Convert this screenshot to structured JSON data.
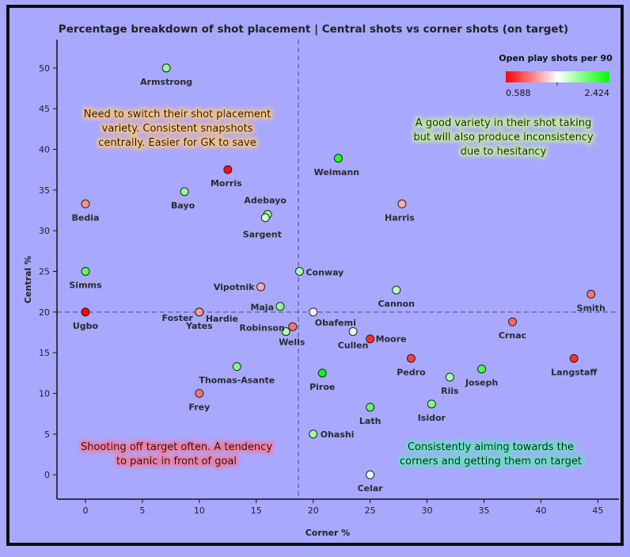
{
  "chart_data": {
    "type": "scatter",
    "title": "Percentage breakdown of shot placement | Central shots vs corner shots (on target)",
    "xlabel": "Corner %",
    "ylabel": "Central %",
    "xlim": [
      -2.5,
      46.5
    ],
    "ylim": [
      -3,
      53
    ],
    "xticks": [
      0,
      5,
      10,
      15,
      20,
      25,
      30,
      35,
      40,
      45
    ],
    "yticks": [
      0,
      5,
      10,
      15,
      20,
      25,
      30,
      35,
      40,
      45,
      50
    ],
    "reference_lines": {
      "x": 18.7,
      "y": 20
    },
    "grid": false,
    "colorbar": {
      "title": "Open play shots per 90",
      "min": 0.588,
      "max": 2.424,
      "min_label": "0.588",
      "max_label": "2.424",
      "colors": [
        "#ff0000",
        "#ffffff",
        "#00ff00"
      ]
    },
    "points": [
      {
        "name": "Armstrong",
        "x": 7.1,
        "y": 50,
        "v": 1.9
      },
      {
        "name": "Morris",
        "x": 12.5,
        "y": 37.5,
        "v": 0.63
      },
      {
        "name": "Bayo",
        "x": 8.7,
        "y": 34.8,
        "v": 1.9
      },
      {
        "name": "Bedia",
        "x": 0,
        "y": 33.3,
        "v": 1.1
      },
      {
        "name": "Adebayo",
        "x": 16.0,
        "y": 32.0,
        "v": 1.9
      },
      {
        "name": "Sargent",
        "x": 15.8,
        "y": 31.6,
        "v": 1.7
      },
      {
        "name": "Weimann",
        "x": 22.2,
        "y": 38.9,
        "v": 2.3
      },
      {
        "name": "Harris",
        "x": 27.8,
        "y": 33.3,
        "v": 1.2
      },
      {
        "name": "Simms",
        "x": 0,
        "y": 25.0,
        "v": 2.1
      },
      {
        "name": "Conway",
        "x": 18.8,
        "y": 25.0,
        "v": 1.8
      },
      {
        "name": "Vipotnik",
        "x": 15.4,
        "y": 23.1,
        "v": 1.2
      },
      {
        "name": "Maja",
        "x": 17.1,
        "y": 20.7,
        "v": 1.9
      },
      {
        "name": "Ugbo",
        "x": 0,
        "y": 20.0,
        "v": 0.6
      },
      {
        "name": "Foster",
        "x": 10.0,
        "y": 20.0,
        "v": 1.15
      },
      {
        "name": "Hardie",
        "x": 10.0,
        "y": 20.0,
        "v": 1.15
      },
      {
        "name": "Yates",
        "x": 10.0,
        "y": 20.0,
        "v": 1.15
      },
      {
        "name": "Obafemi",
        "x": 20.0,
        "y": 20.0,
        "v": 1.45
      },
      {
        "name": "Robinson",
        "x": 18.2,
        "y": 18.2,
        "v": 1.0
      },
      {
        "name": "Wells",
        "x": 17.6,
        "y": 17.6,
        "v": 1.8
      },
      {
        "name": "Cannon",
        "x": 27.3,
        "y": 22.7,
        "v": 1.75
      },
      {
        "name": "Smith",
        "x": 44.4,
        "y": 22.2,
        "v": 1.0
      },
      {
        "name": "Cullen",
        "x": 23.5,
        "y": 17.6,
        "v": 1.55
      },
      {
        "name": "Moore",
        "x": 25.0,
        "y": 16.7,
        "v": 0.75
      },
      {
        "name": "Crnac",
        "x": 37.5,
        "y": 18.8,
        "v": 0.95
      },
      {
        "name": "Pedro",
        "x": 28.6,
        "y": 14.3,
        "v": 0.8
      },
      {
        "name": "Langstaff",
        "x": 42.9,
        "y": 14.3,
        "v": 0.75
      },
      {
        "name": "Thomas-Asante",
        "x": 13.3,
        "y": 13.3,
        "v": 1.95
      },
      {
        "name": "Piroe",
        "x": 20.8,
        "y": 12.5,
        "v": 2.4
      },
      {
        "name": "Riis",
        "x": 32.0,
        "y": 12.0,
        "v": 1.8
      },
      {
        "name": "Joseph",
        "x": 34.8,
        "y": 13.0,
        "v": 2.15
      },
      {
        "name": "Frey",
        "x": 10.0,
        "y": 10.0,
        "v": 1.0
      },
      {
        "name": "Lath",
        "x": 25.0,
        "y": 8.3,
        "v": 2.05
      },
      {
        "name": "Isidor",
        "x": 30.4,
        "y": 8.7,
        "v": 1.95
      },
      {
        "name": "Ohashi",
        "x": 20.0,
        "y": 5.0,
        "v": 1.85
      },
      {
        "name": "Celar",
        "x": 25.0,
        "y": 0,
        "v": 1.55
      }
    ],
    "annotations": [
      {
        "id": "top-left",
        "lines": [
          "Need to switch their shot placement",
          "variety. Consistent snapshots",
          "centrally. Easier for GK to save"
        ],
        "glow": "#f5c186"
      },
      {
        "id": "top-right",
        "lines": [
          "A good variety in their shot taking",
          "but will also produce inconsistency",
          "due to hesitancy"
        ],
        "glow": "#bfe6a0"
      },
      {
        "id": "bottom-left",
        "lines": [
          "Shooting off target often. A tendency",
          "to panic in front of goal"
        ],
        "glow": "#f27c9c"
      },
      {
        "id": "bottom-right",
        "lines": [
          "Consistently aiming towards the",
          "corners and getting them on target"
        ],
        "glow": "#66e0c2"
      }
    ]
  }
}
